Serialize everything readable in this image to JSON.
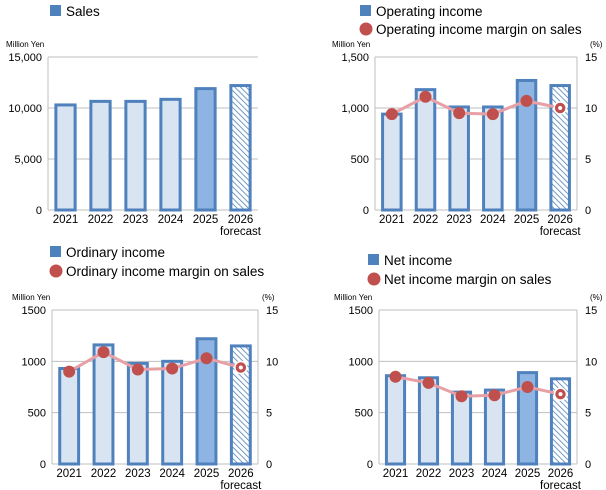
{
  "colors": {
    "bar_fill": "#d9e4f2",
    "bar_fill_highlight": "#8eb4e3",
    "bar_stroke": "#4f81bd",
    "margin_line": "#e6a0a6",
    "margin_marker": "#c0504d",
    "axis": "#bfbfbf",
    "text": "#000000"
  },
  "chart_data": [
    {
      "type": "bar",
      "legend": [
        {
          "label": "Sales",
          "kind": "square"
        }
      ],
      "unit_left": "Million Yen",
      "categories": [
        "2021",
        "2022",
        "2023",
        "2024",
        "2025",
        "2026"
      ],
      "category_sublabels": [
        "",
        "",
        "",
        "",
        "",
        "forecast"
      ],
      "ylim": [
        0,
        15000
      ],
      "yticks": [
        "0",
        "5,000",
        "10,000",
        "15,000"
      ],
      "ytick_values": [
        0,
        5000,
        10000,
        15000
      ],
      "series": [
        {
          "name": "Sales",
          "values": [
            10300,
            10650,
            10650,
            10850,
            11900,
            12200
          ]
        }
      ]
    },
    {
      "type": "bar",
      "legend": [
        {
          "label": "Operating income",
          "kind": "square"
        },
        {
          "label": "Operating income margin on sales",
          "kind": "circle"
        }
      ],
      "unit_left": "Million Yen",
      "unit_right": "(%)",
      "categories": [
        "2021",
        "2022",
        "2023",
        "2024",
        "2025",
        "2026"
      ],
      "category_sublabels": [
        "",
        "",
        "",
        "",
        "",
        "forecast"
      ],
      "ylim": [
        0,
        1500
      ],
      "yticks": [
        "0",
        "500",
        "1,000",
        "1,500"
      ],
      "ytick_values": [
        0,
        500,
        1000,
        1500
      ],
      "y2lim": [
        0,
        15
      ],
      "y2ticks": [
        "0",
        "5",
        "10",
        "15"
      ],
      "y2tick_values": [
        0,
        5,
        10,
        15
      ],
      "series": [
        {
          "name": "Operating income",
          "values": [
            940,
            1180,
            1010,
            1010,
            1270,
            1220
          ]
        },
        {
          "name": "Operating income margin on sales",
          "values": [
            9.4,
            11.1,
            9.5,
            9.4,
            10.7,
            10.0
          ],
          "axis": "right"
        }
      ]
    },
    {
      "type": "bar",
      "legend": [
        {
          "label": "Ordinary income",
          "kind": "square"
        },
        {
          "label": "Ordinary income margin on sales",
          "kind": "circle"
        }
      ],
      "unit_left": "Million Yen",
      "unit_right": "(%)",
      "categories": [
        "2021",
        "2022",
        "2023",
        "2024",
        "2025",
        "2026"
      ],
      "category_sublabels": [
        "",
        "",
        "",
        "",
        "",
        "forecast"
      ],
      "ylim": [
        0,
        1500
      ],
      "yticks": [
        "0",
        "500",
        "1000",
        "1500"
      ],
      "ytick_values": [
        0,
        500,
        1000,
        1500
      ],
      "y2lim": [
        0,
        15
      ],
      "y2ticks": [
        "0",
        "5",
        "10",
        "15"
      ],
      "y2tick_values": [
        0,
        5,
        10,
        15
      ],
      "series": [
        {
          "name": "Ordinary income",
          "values": [
            930,
            1160,
            980,
            1000,
            1220,
            1150
          ]
        },
        {
          "name": "Ordinary income margin on sales",
          "values": [
            9.0,
            10.9,
            9.2,
            9.3,
            10.3,
            9.4
          ],
          "axis": "right"
        }
      ]
    },
    {
      "type": "bar",
      "legend": [
        {
          "label": "Net income",
          "kind": "square"
        },
        {
          "label": "Net income margin on sales",
          "kind": "circle"
        }
      ],
      "unit_left": "Million Yen",
      "unit_right": "(%)",
      "categories": [
        "2021",
        "2022",
        "2023",
        "2024",
        "2025",
        "2026"
      ],
      "category_sublabels": [
        "",
        "",
        "",
        "",
        "",
        "forecast"
      ],
      "ylim": [
        0,
        1500
      ],
      "yticks": [
        "0",
        "500",
        "1000",
        "1500"
      ],
      "ytick_values": [
        0,
        500,
        1000,
        1500
      ],
      "y2lim": [
        0,
        15
      ],
      "y2ticks": [
        "0",
        "5",
        "10",
        "15"
      ],
      "y2tick_values": [
        0,
        5,
        10,
        15
      ],
      "series": [
        {
          "name": "Net income",
          "values": [
            860,
            840,
            700,
            720,
            890,
            830
          ]
        },
        {
          "name": "Net income margin on sales",
          "values": [
            8.5,
            7.9,
            6.6,
            6.7,
            7.5,
            6.8
          ],
          "axis": "right"
        }
      ]
    }
  ]
}
